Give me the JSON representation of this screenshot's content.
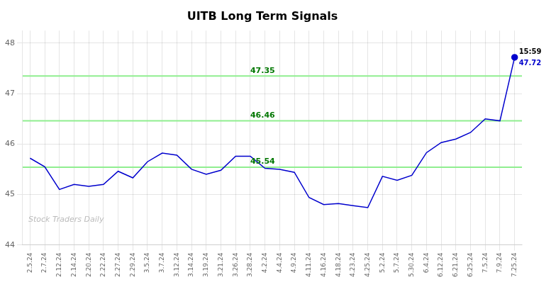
{
  "chart_data": {
    "type": "line",
    "title": "UITB Long Term Signals",
    "categories": [
      "2.5.24",
      "2.7.24",
      "2.12.24",
      "2.14.24",
      "2.20.24",
      "2.22.24",
      "2.27.24",
      "2.29.24",
      "3.5.24",
      "3.7.24",
      "3.12.24",
      "3.14.24",
      "3.19.24",
      "3.21.24",
      "3.26.24",
      "3.28.24",
      "4.2.24",
      "4.4.24",
      "4.9.24",
      "4.11.24",
      "4.16.24",
      "4.18.24",
      "4.23.24",
      "4.25.24",
      "5.2.24",
      "5.7.24",
      "5.30.24",
      "6.4.24",
      "6.12.24",
      "6.21.24",
      "6.25.24",
      "7.5.24",
      "7.9.24",
      "7.25.24"
    ],
    "values": [
      45.72,
      45.55,
      45.1,
      45.2,
      45.16,
      45.2,
      45.46,
      45.33,
      45.65,
      45.82,
      45.78,
      45.5,
      45.4,
      45.48,
      45.76,
      45.76,
      45.52,
      45.5,
      45.44,
      44.94,
      44.8,
      44.82,
      44.78,
      44.74,
      45.36,
      45.28,
      45.38,
      45.83,
      46.03,
      46.1,
      46.23,
      46.5,
      46.46,
      47.72
    ],
    "color": "#0000CD",
    "ylim": [
      44.0,
      48.25
    ],
    "yticks": [
      44,
      45,
      46,
      47,
      48
    ],
    "grid": true,
    "hlines": [
      {
        "value": 45.54,
        "label": "45.54",
        "color": "#90EE90",
        "label_color": "#007700"
      },
      {
        "value": 46.46,
        "label": "46.46",
        "color": "#90EE90",
        "label_color": "#007700"
      },
      {
        "value": 47.35,
        "label": "47.35",
        "color": "#90EE90",
        "label_color": "#007700"
      }
    ],
    "annotations": [
      {
        "text": "15:59",
        "x": "7.25.24",
        "y": 47.72,
        "color": "#000000"
      },
      {
        "text": "47.72",
        "x": "7.25.24",
        "y": 47.72,
        "color": "#0000CD"
      },
      {
        "text": "Stock Traders Daily",
        "color": "#bbbbbb"
      }
    ]
  }
}
